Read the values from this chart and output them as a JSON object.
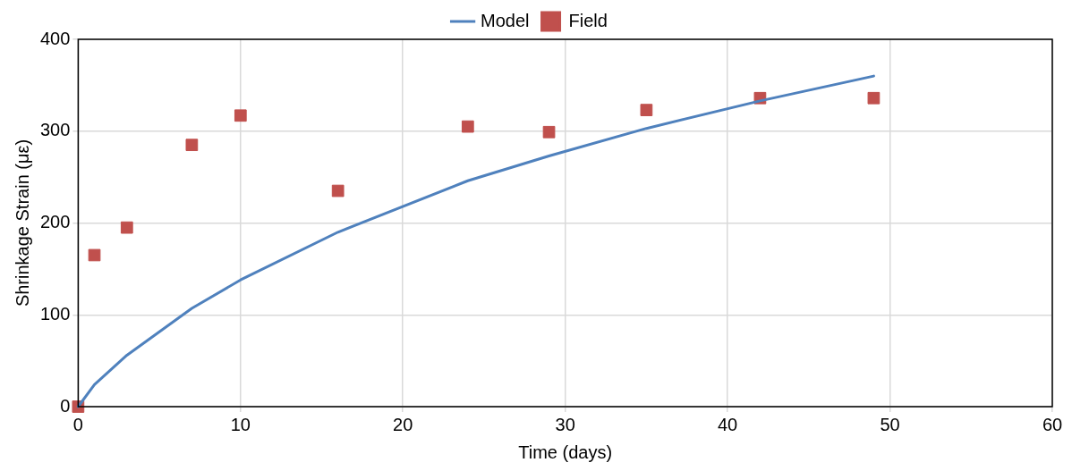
{
  "chart_data": {
    "type": "line",
    "xlabel": "Time (days)",
    "ylabel": "Shrinkage Strain (με)",
    "xlim": [
      0,
      60
    ],
    "xticks": [
      0,
      10,
      20,
      30,
      40,
      50,
      60
    ],
    "ylim": [
      0,
      400
    ],
    "yticks": [
      0,
      100,
      200,
      300,
      400
    ],
    "grid": true,
    "legend": "top",
    "series": [
      {
        "name": "Model",
        "color": "#4f81bd",
        "marker": "none",
        "line_style": "solid",
        "x": [
          0,
          1,
          3,
          7,
          10,
          16,
          24,
          29,
          35,
          42,
          49
        ],
        "values": [
          0,
          24,
          56,
          107,
          138,
          190,
          246,
          273,
          303,
          333,
          360
        ]
      },
      {
        "name": "Field",
        "type": "scatter",
        "color": "#c0504d",
        "marker": "square",
        "x": [
          0,
          1,
          3,
          7,
          10,
          16,
          24,
          29,
          35,
          42,
          49
        ],
        "values": [
          0,
          165,
          195,
          285,
          317,
          235,
          305,
          299,
          323,
          336,
          336
        ]
      }
    ]
  }
}
